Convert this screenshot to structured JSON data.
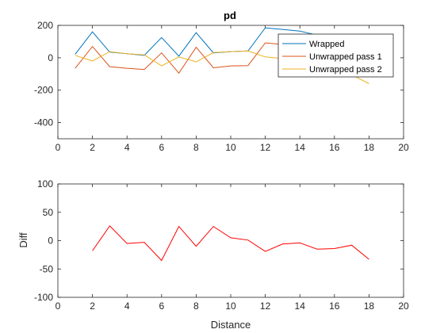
{
  "chart_data": [
    {
      "type": "line",
      "title": "pd",
      "xlabel": "",
      "ylabel": "",
      "xlim": [
        0,
        20
      ],
      "ylim": [
        -500,
        200
      ],
      "xticks": [
        "0",
        "2",
        "4",
        "6",
        "8",
        "10",
        "12",
        "14",
        "16",
        "18",
        "20"
      ],
      "yticks": [
        "-400",
        "-200",
        "0",
        "200"
      ],
      "legend_position": "top-right",
      "series": [
        {
          "name": "Wrapped",
          "color": "#0072bd",
          "x": [
            1,
            2,
            3,
            4,
            5,
            6,
            7,
            8,
            9,
            10,
            11,
            12,
            13,
            14,
            15,
            16,
            17,
            18
          ],
          "y": [
            22,
            160,
            35,
            25,
            15,
            125,
            10,
            155,
            30,
            38,
            42,
            185,
            175,
            165,
            140,
            125,
            120,
            115
          ]
        },
        {
          "name": "Unwrapped pass 1",
          "color": "#d95319",
          "x": [
            1,
            2,
            3,
            4,
            5,
            6,
            7,
            8,
            9,
            10,
            11,
            12,
            13,
            14,
            15,
            16,
            17,
            18
          ],
          "y": [
            -65,
            70,
            -55,
            -65,
            -72,
            30,
            -95,
            65,
            -62,
            -50,
            -48,
            92,
            82,
            78,
            60,
            45,
            30,
            10
          ]
        },
        {
          "name": "Unwrapped pass 2",
          "color": "#edb120",
          "x": [
            1,
            2,
            3,
            4,
            5,
            6,
            7,
            8,
            9,
            10,
            11,
            12,
            13,
            14,
            15,
            16,
            17,
            18
          ],
          "y": [
            15,
            -20,
            38,
            25,
            18,
            -50,
            5,
            -25,
            32,
            38,
            42,
            5,
            -5,
            -10,
            -40,
            -55,
            -105,
            -160
          ]
        }
      ]
    },
    {
      "type": "line",
      "title": "",
      "xlabel": "Distance",
      "ylabel": "Diff",
      "xlim": [
        0,
        20
      ],
      "ylim": [
        -100,
        100
      ],
      "xticks": [
        "0",
        "2",
        "4",
        "6",
        "8",
        "10",
        "12",
        "14",
        "16",
        "18",
        "20"
      ],
      "yticks": [
        "-100",
        "-50",
        "0",
        "50",
        "100"
      ],
      "series": [
        {
          "color": "#ff0000",
          "x": [
            2,
            3,
            4,
            5,
            6,
            7,
            8,
            9,
            10,
            11,
            12,
            13,
            14,
            15,
            16,
            17,
            18
          ],
          "y": [
            -18,
            26,
            -5,
            -3,
            -35,
            25,
            -10,
            25,
            5,
            1,
            -19,
            -6,
            -4,
            -15,
            -14,
            -8,
            -33
          ]
        }
      ]
    }
  ]
}
